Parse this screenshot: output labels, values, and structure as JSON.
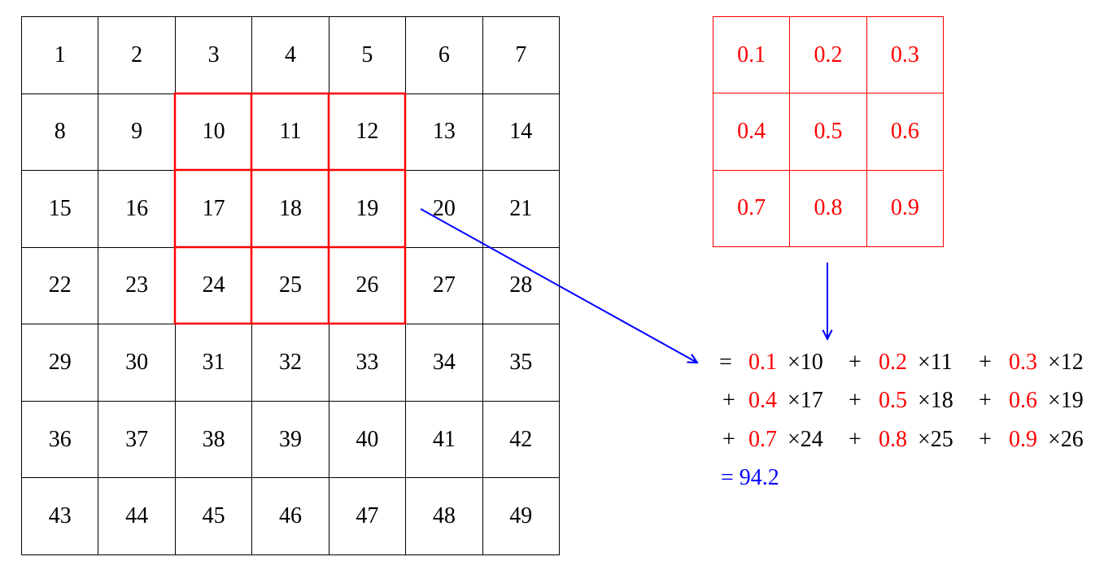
{
  "input_matrix": [
    [
      "1",
      "2",
      "3",
      "4",
      "5",
      "6",
      "7"
    ],
    [
      "8",
      "9",
      "10",
      "11",
      "12",
      "13",
      "14"
    ],
    [
      "15",
      "16",
      "17",
      "18",
      "19",
      "20",
      "21"
    ],
    [
      "22",
      "23",
      "24",
      "25",
      "26",
      "27",
      "28"
    ],
    [
      "29",
      "30",
      "31",
      "32",
      "33",
      "34",
      "35"
    ],
    [
      "36",
      "37",
      "38",
      "39",
      "40",
      "41",
      "42"
    ],
    [
      "43",
      "44",
      "45",
      "46",
      "47",
      "48",
      "49"
    ]
  ],
  "highlight": {
    "rows": [
      1,
      3
    ],
    "cols": [
      2,
      4
    ],
    "color": "#ff0000"
  },
  "kernel": [
    [
      "0.1",
      "0.2",
      "0.3"
    ],
    [
      "0.4",
      "0.5",
      "0.6"
    ],
    [
      "0.7",
      "0.8",
      "0.9"
    ]
  ],
  "equation": {
    "lines": [
      [
        {
          "op": "=",
          "w": "0.1",
          "v": "×10"
        },
        {
          "op": "+",
          "w": "0.2",
          "v": "×11"
        },
        {
          "op": "+",
          "w": "0.3",
          "v": "×12"
        }
      ],
      [
        {
          "op": "+",
          "w": "0.4",
          "v": "×17"
        },
        {
          "op": "+",
          "w": "0.5",
          "v": "×18"
        },
        {
          "op": "+",
          "w": "0.6",
          "v": "×19"
        }
      ],
      [
        {
          "op": "+",
          "w": "0.7",
          "v": "×24"
        },
        {
          "op": "+",
          "w": "0.8",
          "v": "×25"
        },
        {
          "op": "+",
          "w": "0.9",
          "v": "×26"
        }
      ]
    ],
    "result": "= 94.2"
  },
  "colors": {
    "kernel": "#ff0000",
    "arrow": "#0000ff",
    "result": "#0000ff",
    "grid": "#000000"
  }
}
